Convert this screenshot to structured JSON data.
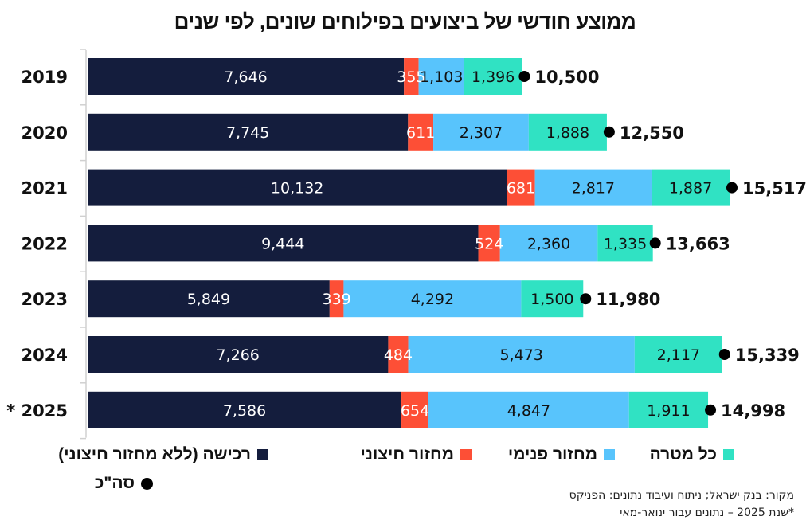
{
  "title": "ממוצע חודשי של ביצועים בפילוחים שונים, לפי שנים",
  "chart_data": {
    "type": "bar",
    "orientation": "horizontal",
    "stacked": true,
    "title": "ממוצע חודשי של ביצועים בפילוחים שונים, לפי שנים",
    "categories": [
      "2019",
      "2020",
      "2021",
      "2022",
      "2023",
      "2024",
      "* 2025"
    ],
    "series": [
      {
        "name": "רכישה (ללא מחזור חיצוני)",
        "color": "#141d3d",
        "label_color": "#ffffff",
        "values": [
          7646,
          7745,
          10132,
          9444,
          5849,
          7266,
          7586
        ],
        "labels": [
          "7,646",
          "7,745",
          "10,132",
          "9,444",
          "5,849",
          "7,266",
          "7,586"
        ]
      },
      {
        "name": "מחזור חיצוני",
        "color": "#fd4f36",
        "label_color": "#ffffff",
        "values": [
          355,
          611,
          681,
          524,
          339,
          484,
          654
        ],
        "labels": [
          "355",
          "611",
          "681",
          "524",
          "339",
          "484",
          "654"
        ]
      },
      {
        "name": "מחזור פנימי",
        "color": "#58c4fc",
        "label_color": "#111111",
        "values": [
          1103,
          2307,
          2817,
          2360,
          4292,
          5473,
          4847
        ],
        "labels": [
          "1,103",
          "2,307",
          "2,817",
          "2,360",
          "4,292",
          "5,473",
          "4,847"
        ]
      },
      {
        "name": "כל מטרה",
        "color": "#30e2c3",
        "label_color": "#111111",
        "values": [
          1396,
          1888,
          1887,
          1335,
          1500,
          2117,
          1911
        ],
        "labels": [
          "1,396",
          "1,888",
          "1,887",
          "1,335",
          "1,500",
          "2,117",
          "1,911"
        ]
      }
    ],
    "totals": {
      "name": "סה\"כ",
      "values": [
        10500,
        12550,
        15517,
        13663,
        11980,
        15339,
        14998
      ],
      "labels": [
        "10,500",
        "12,550",
        "15,517",
        "13,663",
        "11,980",
        "15,339",
        "14,998"
      ]
    },
    "xlim": [
      0,
      15517
    ],
    "grid": false,
    "xaxis_visible": false,
    "legend_placement": "bottom"
  },
  "legend": {
    "items": [
      {
        "label": "כל מטרה",
        "color": "#30e2c3"
      },
      {
        "label": "מחזור פנימי",
        "color": "#58c4fc"
      },
      {
        "label": "מחזור חיצוני",
        "color": "#fd4f36"
      },
      {
        "label": "רכישה (ללא מחזור חיצוני)",
        "color": "#141d3d"
      }
    ],
    "total_label": "סה\"כ"
  },
  "source": {
    "line1": "מקור: בנק ישראל; ניתוח ועיבוד נתונים: הפניקס",
    "line2": "*שנת 2025 – נתונים עבור ינואר-מאי"
  }
}
